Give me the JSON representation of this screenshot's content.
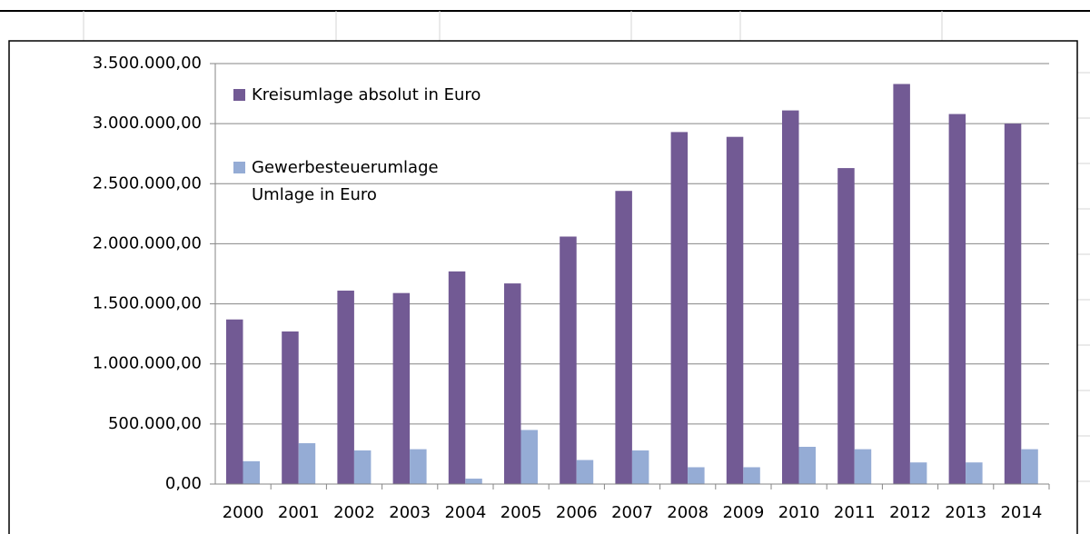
{
  "chart_data": {
    "type": "bar",
    "categories": [
      "2000",
      "2001",
      "2002",
      "2003",
      "2004",
      "2005",
      "2006",
      "2007",
      "2008",
      "2009",
      "2010",
      "2011",
      "2012",
      "2013",
      "2014"
    ],
    "series": [
      {
        "name": "Kreisumlage absolut in Euro",
        "color": "#725a94",
        "values": [
          1370000,
          1270000,
          1610000,
          1590000,
          1770000,
          1670000,
          2060000,
          2440000,
          2930000,
          2890000,
          3110000,
          2630000,
          3330000,
          3080000,
          3000000
        ]
      },
      {
        "name": "Gewerbesteuerumlage Umlage in Euro",
        "color": "#95acd5",
        "values": [
          190000,
          340000,
          280000,
          290000,
          45000,
          450000,
          200000,
          280000,
          140000,
          140000,
          310000,
          290000,
          180000,
          180000,
          290000
        ]
      }
    ],
    "ylim": [
      0,
      3500000
    ],
    "yticks": [
      {
        "value": 0,
        "label": "0,00"
      },
      {
        "value": 500000,
        "label": "500.000,00"
      },
      {
        "value": 1000000,
        "label": "1.000.000,00"
      },
      {
        "value": 1500000,
        "label": "1.500.000,00"
      },
      {
        "value": 2000000,
        "label": "2.000.000,00"
      },
      {
        "value": 2500000,
        "label": "2.500.000,00"
      },
      {
        "value": 3000000,
        "label": "3.000.000,00"
      },
      {
        "value": 3500000,
        "label": "3.500.000,00"
      }
    ],
    "grid": true,
    "legend": "top-left"
  }
}
